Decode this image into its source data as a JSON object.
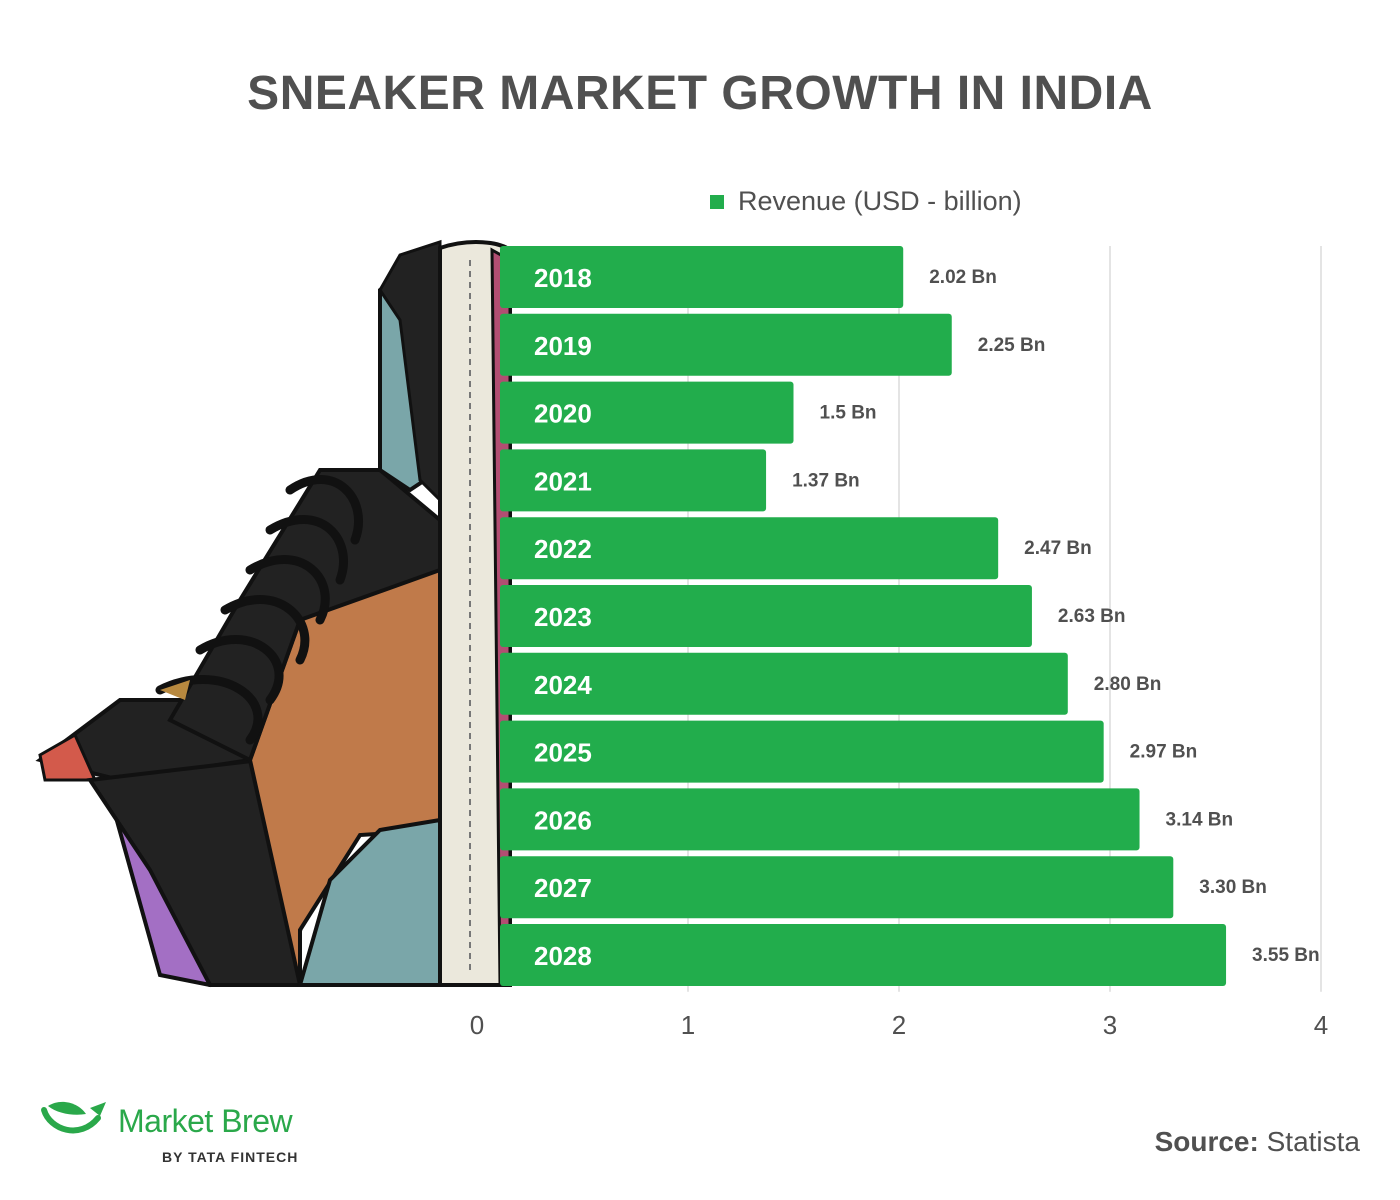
{
  "colors": {
    "bar": "#22ad4c",
    "title": "#505050",
    "grid": "#e4e4e4",
    "label": "#505050"
  },
  "chart_data": {
    "type": "bar",
    "orientation": "horizontal",
    "title": "SNEAKER MARKET GROWTH IN INDIA",
    "legend": "Revenue (USD - billion)",
    "legend_position": "top-right",
    "categories": [
      "2018",
      "2019",
      "2020",
      "2021",
      "2022",
      "2023",
      "2024",
      "2025",
      "2026",
      "2027",
      "2028"
    ],
    "values": [
      2.02,
      2.25,
      1.5,
      1.37,
      2.47,
      2.63,
      2.8,
      2.97,
      3.14,
      3.3,
      3.55
    ],
    "value_labels": [
      "2.02 Bn",
      "2.25 Bn",
      "1.5 Bn",
      "1.37 Bn",
      "2.47 Bn",
      "2.63 Bn",
      "2.80 Bn",
      "2.97 Bn",
      "3.14 Bn",
      "3.30 Bn",
      "3.55 Bn"
    ],
    "xticks": [
      "0",
      "1",
      "2",
      "3",
      "4"
    ],
    "xlim": [
      0,
      4
    ],
    "grid": true
  },
  "brand": {
    "name": "Market Brew",
    "sub": "BY TATA FINTECH",
    "icon": "leaf-bowl-icon"
  },
  "source": {
    "label": "Source:",
    "value": "Statista"
  }
}
